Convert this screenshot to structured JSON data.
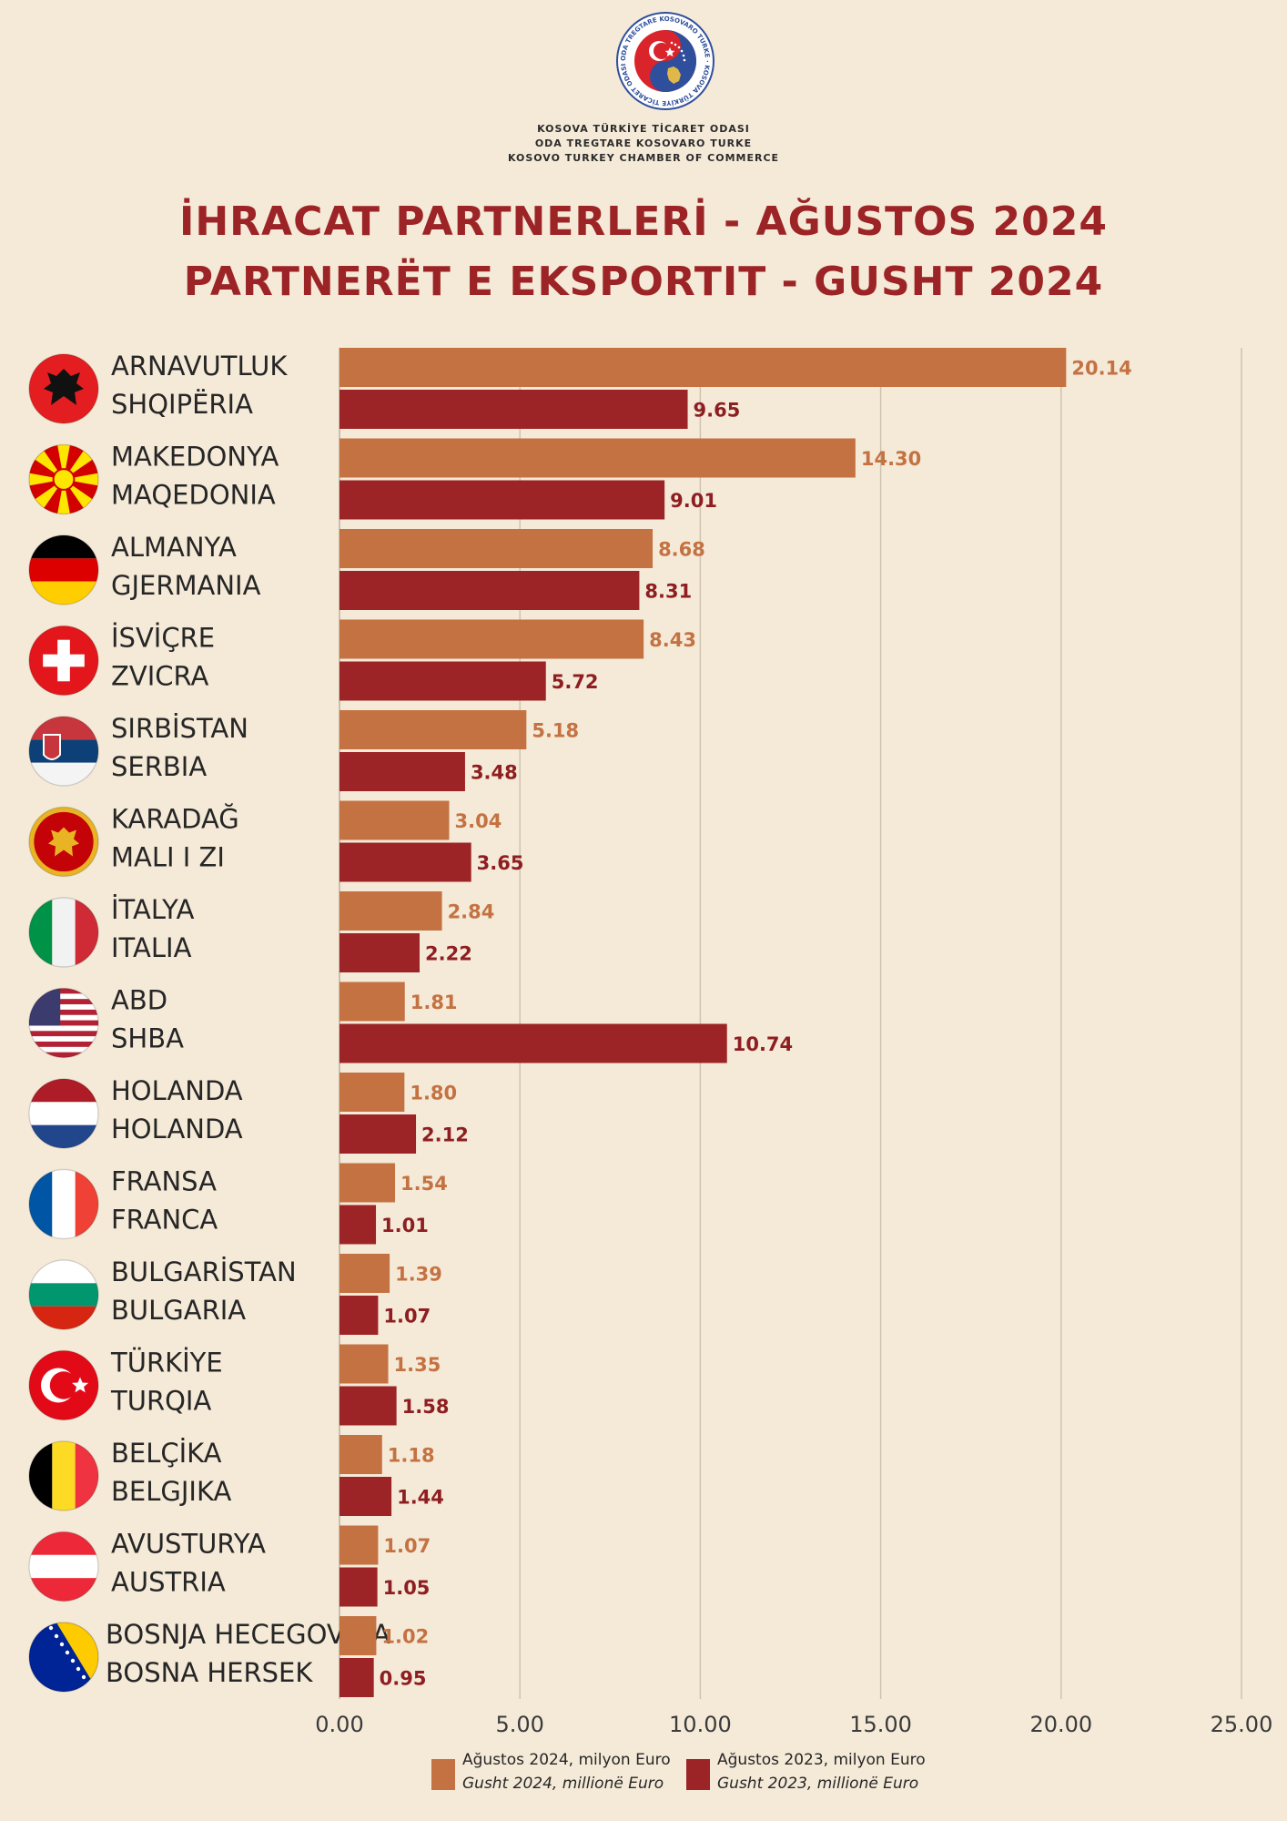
{
  "header": {
    "org_lines": [
      "KOSOVA TÜRKİYE TİCARET ODASI",
      "ODA TREGTARE KOSOVARO TURKE",
      "KOSOVO TURKEY CHAMBER OF COMMERCE"
    ],
    "logo_ring_text": "ODA TREGTARE KOSOVARO TURKE · KOSOVA TÜRKİYE TİCARET ODASI",
    "title_line1": "İHRACAT PARTNERLERİ - AĞUSTOS 2024",
    "title_line2": "PARTNERËT E EKSPORTIT - GUSHT 2024"
  },
  "colors": {
    "background": "#f5ead8",
    "series_2024": "#c47242",
    "series_2023": "#9c2426",
    "title": "#9c2426",
    "gridline": "#cfc3b0"
  },
  "chart_data": {
    "type": "bar",
    "orientation": "horizontal",
    "grid": true,
    "legend_position": "bottom-center",
    "xlim": [
      0,
      25
    ],
    "x_ticks": [
      "0.00",
      "5.00",
      "10.00",
      "15.00",
      "20.00",
      "25.00"
    ],
    "categories": [
      {
        "tr": "ARNAVUTLUK",
        "sq": "SHQIPËRIA",
        "flag": "albania-flag-icon"
      },
      {
        "tr": "MAKEDONYA",
        "sq": "MAQEDONIA",
        "flag": "north-macedonia-flag-icon"
      },
      {
        "tr": "ALMANYA",
        "sq": "GJERMANIA",
        "flag": "germany-flag-icon"
      },
      {
        "tr": "İSVİÇRE",
        "sq": "ZVICRA",
        "flag": "switzerland-flag-icon"
      },
      {
        "tr": "SIRBİSTAN",
        "sq": "SERBIA",
        "flag": "serbia-flag-icon"
      },
      {
        "tr": "KARADAĞ",
        "sq": "MALI I ZI",
        "flag": "montenegro-flag-icon"
      },
      {
        "tr": "İTALYA",
        "sq": "ITALIA",
        "flag": "italy-flag-icon"
      },
      {
        "tr": "ABD",
        "sq": "SHBA",
        "flag": "usa-flag-icon"
      },
      {
        "tr": "HOLANDA",
        "sq": "HOLANDA",
        "flag": "netherlands-flag-icon"
      },
      {
        "tr": "FRANSA",
        "sq": "FRANCA",
        "flag": "france-flag-icon"
      },
      {
        "tr": "BULGARİSTAN",
        "sq": "BULGARIA",
        "flag": "bulgaria-flag-icon"
      },
      {
        "tr": "TÜRKİYE",
        "sq": "TURQIA",
        "flag": "turkey-flag-icon"
      },
      {
        "tr": "BELÇİKA",
        "sq": "BELGJIKA",
        "flag": "belgium-flag-icon"
      },
      {
        "tr": "AVUSTURYA",
        "sq": "AUSTRIA",
        "flag": "austria-flag-icon"
      },
      {
        "tr": "BOSNJA HECEGOVINA",
        "sq": "BOSNA HERSEK",
        "flag": "bosnia-flag-icon"
      }
    ],
    "series": [
      {
        "key": "2024",
        "legend_tr": "Ağustos  2024, milyon Euro",
        "legend_sq": "Gusht 2024, millionë Euro",
        "values": [
          20.14,
          14.3,
          8.68,
          8.43,
          5.18,
          3.04,
          2.84,
          1.81,
          1.8,
          1.54,
          1.39,
          1.35,
          1.18,
          1.07,
          1.02
        ],
        "labels": [
          "20.14",
          "14.30",
          "8.68",
          "8.43",
          "5.18",
          "3.04",
          "2.84",
          "1.81",
          "1.80",
          "1.54",
          "1.39",
          "1.35",
          "1.18",
          "1.07",
          "1.02"
        ]
      },
      {
        "key": "2023",
        "legend_tr": "Ağustos 2023, milyon Euro",
        "legend_sq": "Gusht 2023, millionë Euro",
        "values": [
          9.65,
          9.01,
          8.31,
          5.72,
          3.48,
          3.65,
          2.22,
          10.74,
          2.12,
          1.01,
          1.07,
          1.58,
          1.44,
          1.05,
          0.95
        ],
        "labels": [
          "9.65",
          "9.01",
          "8.31",
          "5.72",
          "3.48",
          "3.65",
          "2.22",
          "10.74",
          "2.12",
          "1.01",
          "1.07",
          "1.58",
          "1.44",
          "1.05",
          "0.95"
        ]
      }
    ]
  }
}
